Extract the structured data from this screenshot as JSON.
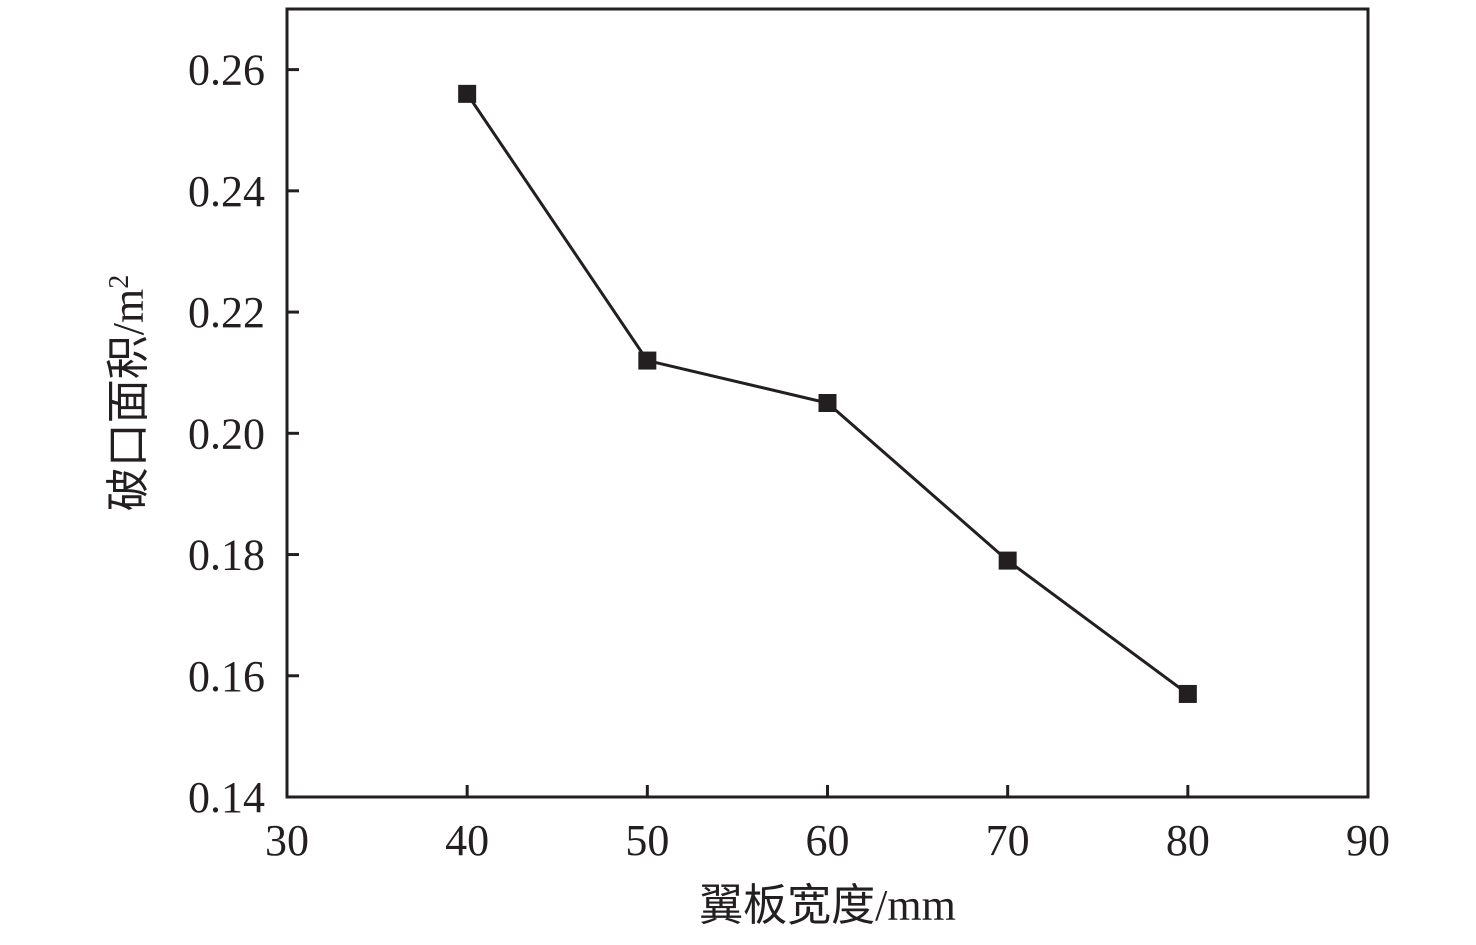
{
  "chart_data": {
    "type": "line",
    "xlabel": "翼板宽度/mm",
    "ylabel": "破口面积/m",
    "ylabel_superscript": "2",
    "xlim": [
      30,
      90
    ],
    "ylim": [
      0.14,
      0.27
    ],
    "xticks": [
      30,
      40,
      50,
      60,
      70,
      80,
      90
    ],
    "yticks": [
      "0.14",
      "0.16",
      "0.18",
      "0.20",
      "0.22",
      "0.24",
      "0.26"
    ],
    "grid": false,
    "series": [
      {
        "marker": "square",
        "color": "#231f20",
        "x": [
          40,
          50,
          60,
          70,
          80
        ],
        "y": [
          0.256,
          0.212,
          0.205,
          0.179,
          0.157
        ]
      }
    ]
  }
}
